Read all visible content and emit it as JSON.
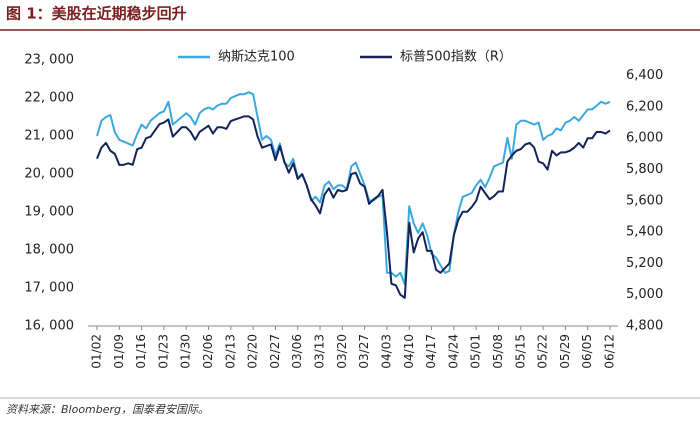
{
  "chart_data": {
    "type": "line",
    "title": "图 1：美股在近期稳步回升",
    "source": "资料来源：Bloomberg，国泰君安国际。",
    "categories": [
      "01/02",
      null,
      null,
      null,
      null,
      "01/09",
      null,
      null,
      null,
      null,
      "01/16",
      null,
      null,
      null,
      null,
      "01/23",
      null,
      null,
      null,
      null,
      "01/30",
      null,
      null,
      null,
      null,
      "02/06",
      null,
      null,
      null,
      null,
      "02/13",
      null,
      null,
      null,
      null,
      "02/20",
      null,
      null,
      null,
      null,
      "02/27",
      null,
      null,
      null,
      null,
      "03/06",
      null,
      null,
      null,
      null,
      "03/13",
      null,
      null,
      null,
      null,
      "03/20",
      null,
      null,
      null,
      null,
      "03/27",
      null,
      null,
      null,
      null,
      "04/03",
      null,
      null,
      null,
      null,
      "04/10",
      null,
      null,
      null,
      null,
      "04/17",
      null,
      null,
      null,
      null,
      "04/24",
      null,
      null,
      null,
      null,
      "05/01",
      null,
      null,
      null,
      null,
      "05/08",
      null,
      null,
      null,
      null,
      "05/15",
      null,
      null,
      null,
      null,
      "05/22",
      null,
      null,
      null,
      null,
      "05/29",
      null,
      null,
      null,
      null,
      "06/05",
      null,
      null,
      null,
      null,
      "06/12"
    ],
    "series": [
      {
        "name": "纳斯达克100",
        "color": "#3ba9dd",
        "axis": "y",
        "values": [
          21000,
          21400,
          21500,
          21550,
          21100,
          20900,
          20850,
          20800,
          20750,
          21050,
          21300,
          21200,
          21400,
          21500,
          21600,
          21650,
          21900,
          21300,
          21400,
          21500,
          21600,
          21500,
          21300,
          21600,
          21700,
          21750,
          21700,
          21800,
          21850,
          21850,
          22000,
          22050,
          22100,
          22100,
          22150,
          22100,
          21500,
          20900,
          21000,
          20900,
          20500,
          20800,
          20300,
          20200,
          20400,
          19900,
          20000,
          19700,
          19300,
          19400,
          19250,
          19700,
          19800,
          19600,
          19700,
          19700,
          19600,
          20200,
          20300,
          20000,
          19700,
          19300,
          19300,
          19400,
          19450,
          17400,
          17400,
          17300,
          17400,
          17100,
          19150,
          18700,
          18450,
          18700,
          18400,
          17900,
          17800,
          17600,
          17400,
          17450,
          18400,
          19000,
          19400,
          19450,
          19500,
          19700,
          19850,
          19650,
          19900,
          20200,
          20250,
          20300,
          20950,
          20400,
          21300,
          21400,
          21400,
          21350,
          21300,
          21350,
          20900,
          21000,
          21050,
          21200,
          21150,
          21350,
          21400,
          21500,
          21400,
          21550,
          21700,
          21700,
          21800,
          21900,
          21850,
          21900
        ]
      },
      {
        "name": "标普500指数（R）",
        "color": "#14245a",
        "axis": "y2",
        "values": [
          5870,
          5940,
          5970,
          5920,
          5900,
          5830,
          5830,
          5840,
          5830,
          5930,
          5940,
          6000,
          6010,
          6050,
          6090,
          6100,
          6120,
          6010,
          6040,
          6070,
          6070,
          6040,
          5990,
          6040,
          6060,
          6080,
          6030,
          6070,
          6070,
          6060,
          6110,
          6120,
          6130,
          6140,
          6140,
          6120,
          6010,
          5940,
          5950,
          5960,
          5860,
          5950,
          5850,
          5780,
          5840,
          5740,
          5770,
          5700,
          5610,
          5570,
          5520,
          5640,
          5680,
          5620,
          5670,
          5660,
          5670,
          5770,
          5780,
          5710,
          5690,
          5580,
          5610,
          5630,
          5670,
          5400,
          5070,
          5060,
          5000,
          4980,
          5460,
          5270,
          5360,
          5400,
          5280,
          5280,
          5160,
          5140,
          5170,
          5200,
          5380,
          5480,
          5530,
          5530,
          5560,
          5600,
          5690,
          5650,
          5610,
          5630,
          5660,
          5660,
          5850,
          5890,
          5920,
          5930,
          5960,
          5970,
          5940,
          5850,
          5840,
          5800,
          5920,
          5890,
          5910,
          5910,
          5920,
          5940,
          5970,
          5940,
          6000,
          6000,
          6040,
          6040,
          6030,
          6050
        ]
      }
    ],
    "ylim": [
      16000,
      23000
    ],
    "yticks": [
      {
        "value": 16000,
        "label": "16, 000"
      },
      {
        "value": 17000,
        "label": "17, 000"
      },
      {
        "value": 18000,
        "label": "18, 000"
      },
      {
        "value": 19000,
        "label": "19, 000"
      },
      {
        "value": 20000,
        "label": "20, 000"
      },
      {
        "value": 21000,
        "label": "21, 000"
      },
      {
        "value": 22000,
        "label": "22, 000"
      },
      {
        "value": 23000,
        "label": "23, 000"
      }
    ],
    "y2lim": [
      4800,
      6500
    ],
    "y2ticks": [
      {
        "value": 4800,
        "label": "4,800"
      },
      {
        "value": 5000,
        "label": "5,000"
      },
      {
        "value": 5200,
        "label": "5,200"
      },
      {
        "value": 5400,
        "label": "5,400"
      },
      {
        "value": 5600,
        "label": "5,600"
      },
      {
        "value": 5800,
        "label": "5,800"
      },
      {
        "value": 6000,
        "label": "6,000"
      },
      {
        "value": 6200,
        "label": "6,200"
      },
      {
        "value": 6400,
        "label": "6,400"
      }
    ],
    "grid": false,
    "legend": "top"
  }
}
